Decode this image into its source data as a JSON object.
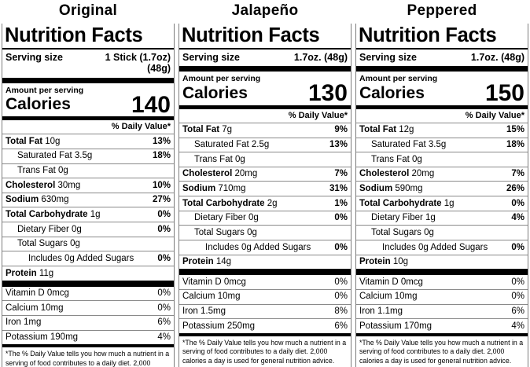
{
  "shared": {
    "title": "Nutrition Facts",
    "serving_size_label": "Serving size",
    "amount_per_serving": "Amount per serving",
    "calories_label": "Calories",
    "daily_value_header": "% Daily Value*",
    "footnote": "*The % Daily Value tells you how much a nutrient in a serving of food contributes to a daily diet. 2,000 calories a day is used for general nutrition advice.",
    "text_color": "#000000",
    "bar_color": "#000000",
    "hairline_color": "#8a8a8a"
  },
  "labels": [
    {
      "flavor": "Original",
      "serving_size": "1 Stick (1.7oz)\n(48g)",
      "calories": "140",
      "nutrients": [
        {
          "bold": "Total Fat",
          "rest": "10g",
          "dv": "13%",
          "dv_bold": true,
          "indent": 0
        },
        {
          "bold": "",
          "rest": "Saturated Fat 3.5g",
          "dv": "18%",
          "dv_bold": true,
          "indent": 1
        },
        {
          "bold": "",
          "rest": "Trans Fat 0g",
          "dv": "",
          "dv_bold": false,
          "indent": 1
        },
        {
          "bold": "Cholesterol",
          "rest": "30mg",
          "dv": "10%",
          "dv_bold": true,
          "indent": 0
        },
        {
          "bold": "Sodium",
          "rest": "630mg",
          "dv": "27%",
          "dv_bold": true,
          "indent": 0
        },
        {
          "bold": "Total Carbohydrate",
          "rest": "1g",
          "dv": "0%",
          "dv_bold": true,
          "indent": 0
        },
        {
          "bold": "",
          "rest": "Dietary Fiber 0g",
          "dv": "0%",
          "dv_bold": true,
          "indent": 1
        },
        {
          "bold": "",
          "rest": "Total Sugars 0g",
          "dv": "",
          "dv_bold": false,
          "indent": 1
        },
        {
          "bold": "",
          "rest": "Includes 0g Added Sugars",
          "dv": "0%",
          "dv_bold": true,
          "indent": 2
        },
        {
          "bold": "Protein",
          "rest": "11g",
          "dv": "",
          "dv_bold": false,
          "indent": 0
        }
      ],
      "micros": [
        {
          "rest": "Vitamin D 0mcg",
          "dv": "0%"
        },
        {
          "rest": "Calcium 10mg",
          "dv": "0%"
        },
        {
          "rest": "Iron 1mg",
          "dv": "6%"
        },
        {
          "rest": "Potassium 190mg",
          "dv": "4%"
        }
      ]
    },
    {
      "flavor": "Jalapeño",
      "serving_size": "1.7oz. (48g)",
      "calories": "130",
      "nutrients": [
        {
          "bold": "Total Fat",
          "rest": "7g",
          "dv": "9%",
          "dv_bold": true,
          "indent": 0
        },
        {
          "bold": "",
          "rest": "Saturated Fat 2.5g",
          "dv": "13%",
          "dv_bold": true,
          "indent": 1
        },
        {
          "bold": "",
          "rest": "Trans Fat 0g",
          "dv": "",
          "dv_bold": false,
          "indent": 1
        },
        {
          "bold": "Cholesterol",
          "rest": "20mg",
          "dv": "7%",
          "dv_bold": true,
          "indent": 0
        },
        {
          "bold": "Sodium",
          "rest": "710mg",
          "dv": "31%",
          "dv_bold": true,
          "indent": 0
        },
        {
          "bold": "Total Carbohydrate",
          "rest": "2g",
          "dv": "1%",
          "dv_bold": true,
          "indent": 0
        },
        {
          "bold": "",
          "rest": "Dietary Fiber 0g",
          "dv": "0%",
          "dv_bold": true,
          "indent": 1
        },
        {
          "bold": "",
          "rest": "Total Sugars 0g",
          "dv": "",
          "dv_bold": false,
          "indent": 1
        },
        {
          "bold": "",
          "rest": "Includes 0g Added Sugars",
          "dv": "0%",
          "dv_bold": true,
          "indent": 2
        },
        {
          "bold": "Protein",
          "rest": "14g",
          "dv": "",
          "dv_bold": false,
          "indent": 0
        }
      ],
      "micros": [
        {
          "rest": "Vitamin D 0mcg",
          "dv": "0%"
        },
        {
          "rest": "Calcium 10mg",
          "dv": "0%"
        },
        {
          "rest": "Iron 1.5mg",
          "dv": "8%"
        },
        {
          "rest": "Potassium 250mg",
          "dv": "6%"
        }
      ]
    },
    {
      "flavor": "Peppered",
      "serving_size": "1.7oz. (48g)",
      "calories": "150",
      "nutrients": [
        {
          "bold": "Total Fat",
          "rest": "12g",
          "dv": "15%",
          "dv_bold": true,
          "indent": 0
        },
        {
          "bold": "",
          "rest": "Saturated Fat 3.5g",
          "dv": "18%",
          "dv_bold": true,
          "indent": 1
        },
        {
          "bold": "",
          "rest": "Trans Fat 0g",
          "dv": "",
          "dv_bold": false,
          "indent": 1
        },
        {
          "bold": "Cholesterol",
          "rest": "20mg",
          "dv": "7%",
          "dv_bold": true,
          "indent": 0
        },
        {
          "bold": "Sodium",
          "rest": "590mg",
          "dv": "26%",
          "dv_bold": true,
          "indent": 0
        },
        {
          "bold": "Total Carbohydrate",
          "rest": "1g",
          "dv": "0%",
          "dv_bold": true,
          "indent": 0
        },
        {
          "bold": "",
          "rest": "Dietary Fiber 1g",
          "dv": "4%",
          "dv_bold": true,
          "indent": 1
        },
        {
          "bold": "",
          "rest": "Total Sugars 0g",
          "dv": "",
          "dv_bold": false,
          "indent": 1
        },
        {
          "bold": "",
          "rest": "Includes 0g Added Sugars",
          "dv": "0%",
          "dv_bold": true,
          "indent": 2
        },
        {
          "bold": "Protein",
          "rest": "10g",
          "dv": "",
          "dv_bold": false,
          "indent": 0
        }
      ],
      "micros": [
        {
          "rest": "Vitamin D 0mcg",
          "dv": "0%"
        },
        {
          "rest": "Calcium 10mg",
          "dv": "0%"
        },
        {
          "rest": "Iron 1.1mg",
          "dv": "6%"
        },
        {
          "rest": "Potassium 170mg",
          "dv": "4%"
        }
      ]
    }
  ]
}
